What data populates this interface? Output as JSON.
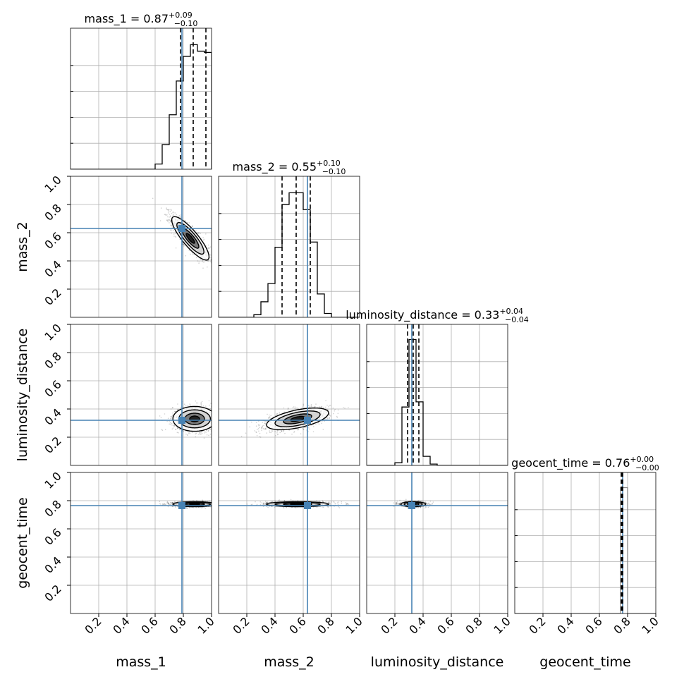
{
  "chart_data": {
    "type": "corner",
    "parameters": [
      "mass_1",
      "mass_2",
      "luminosity_distance",
      "geocent_time"
    ],
    "axis_labels": [
      "mass_1",
      "mass_2",
      "luminosity_distance",
      "geocent_time"
    ],
    "range": [
      0,
      1
    ],
    "ticks": [
      0.2,
      0.4,
      0.6,
      0.8,
      1.0
    ],
    "tick_labels": [
      "0.2",
      "0.4",
      "0.6",
      "0.8",
      "1.0"
    ],
    "grid": true,
    "injection": {
      "color": "#4682b4",
      "values": [
        0.79,
        0.63,
        0.32,
        0.765
      ]
    },
    "diagonals": [
      {
        "param": "mass_1",
        "title_prefix": "mass_1 = ",
        "title_value": "0.87",
        "title_plus": "+0.09",
        "title_minus": "−0.10",
        "quantiles": [
          0.78,
          0.87,
          0.96
        ],
        "bin_edges": [
          0.6,
          0.65,
          0.7,
          0.75,
          0.8,
          0.85,
          0.9,
          0.95,
          1.0
        ],
        "counts": [
          0.04,
          0.19,
          0.42,
          0.68,
          0.87,
          0.96,
          0.91,
          0.9
        ]
      },
      {
        "param": "mass_2",
        "title_prefix": "mass_2 = ",
        "title_value": "0.55",
        "title_plus": "+0.10",
        "title_minus": "−0.10",
        "quantiles": [
          0.45,
          0.55,
          0.65
        ],
        "bin_edges": [
          0.25,
          0.3,
          0.35,
          0.4,
          0.45,
          0.5,
          0.55,
          0.6,
          0.65,
          0.7,
          0.75,
          0.8
        ],
        "counts": [
          0.02,
          0.12,
          0.26,
          0.54,
          0.87,
          0.96,
          0.96,
          0.83,
          0.58,
          0.18,
          0.03
        ]
      },
      {
        "param": "luminosity_distance",
        "title_prefix": "luminosity_distance = ",
        "title_value": "0.33",
        "title_plus": "+0.04",
        "title_minus": "−0.04",
        "quantiles": [
          0.29,
          0.33,
          0.37
        ],
        "bin_edges": [
          0.2,
          0.25,
          0.3,
          0.35,
          0.4,
          0.45,
          0.5
        ],
        "counts": [
          0.02,
          0.45,
          0.97,
          0.49,
          0.07,
          0.01
        ]
      },
      {
        "param": "geocent_time",
        "title_prefix": "geocent_time = ",
        "title_value": "0.76",
        "title_plus": "+0.00",
        "title_minus": "−0.00",
        "quantiles": [
          0.755,
          0.76,
          0.765
        ],
        "bin_edges": [
          0.75,
          0.8
        ],
        "counts": [
          0.97
        ]
      }
    ],
    "joint": [
      {
        "x": "mass_1",
        "y": "mass_2",
        "mean": [
          0.85,
          0.56
        ],
        "std": [
          0.06,
          0.07
        ],
        "corr": -0.85
      },
      {
        "x": "mass_1",
        "y": "luminosity_distance",
        "mean": [
          0.88,
          0.33
        ],
        "std": [
          0.07,
          0.04
        ],
        "corr": 0.0
      },
      {
        "x": "mass_2",
        "y": "luminosity_distance",
        "mean": [
          0.56,
          0.33
        ],
        "std": [
          0.1,
          0.035
        ],
        "corr": 0.55
      },
      {
        "x": "mass_1",
        "y": "geocent_time",
        "mean": [
          0.88,
          0.775
        ],
        "std": [
          0.07,
          0.008
        ],
        "corr": 0.0
      },
      {
        "x": "mass_2",
        "y": "geocent_time",
        "mean": [
          0.56,
          0.775
        ],
        "std": [
          0.1,
          0.008
        ],
        "corr": 0.0
      },
      {
        "x": "luminosity_distance",
        "y": "geocent_time",
        "mean": [
          0.33,
          0.775
        ],
        "std": [
          0.04,
          0.008
        ],
        "corr": 0.0
      }
    ]
  }
}
